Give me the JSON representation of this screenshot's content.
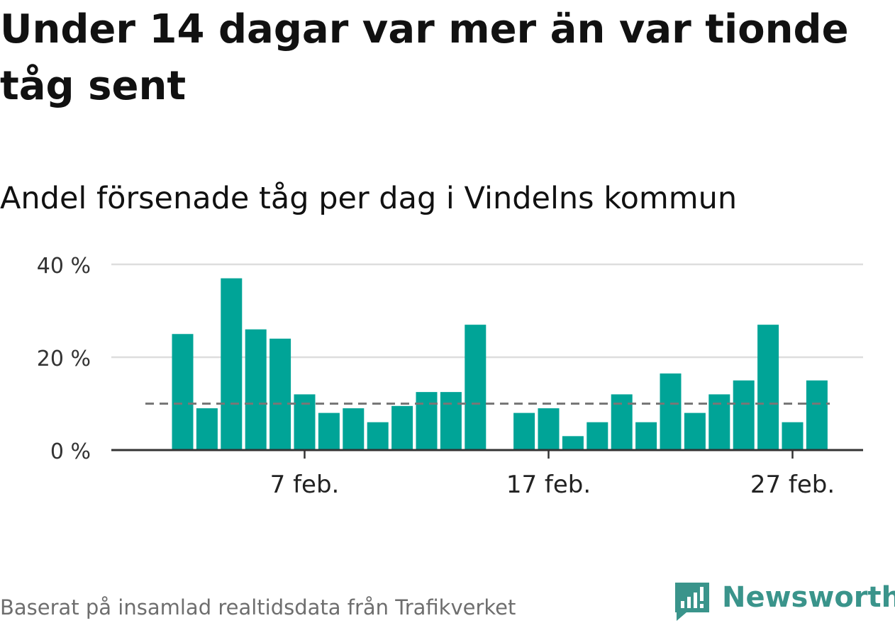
{
  "title": "Under 14 dagar var mer än var tionde tåg sent",
  "subtitle": "Andel försenade tåg per dag i Vindelns kommun",
  "footer": "Baserat på insamlad realtidsdata från Trafikverket",
  "brand": {
    "name": "Newsworthy",
    "icon": "newsworthy-logo-icon",
    "color": "#3a948b"
  },
  "colors": {
    "bar": "#00a497",
    "reference_line": "#777777",
    "grid": "#dddddd",
    "axis": "#333333"
  },
  "chart_data": {
    "type": "bar",
    "x_unit": "date",
    "x": [
      "2024-02-02",
      "2024-02-03",
      "2024-02-04",
      "2024-02-05",
      "2024-02-06",
      "2024-02-07",
      "2024-02-08",
      "2024-02-09",
      "2024-02-10",
      "2024-02-11",
      "2024-02-12",
      "2024-02-13",
      "2024-02-14",
      "2024-02-15",
      "2024-02-16",
      "2024-02-17",
      "2024-02-18",
      "2024-02-19",
      "2024-02-20",
      "2024-02-21",
      "2024-02-22",
      "2024-02-23",
      "2024-02-24",
      "2024-02-25",
      "2024-02-26",
      "2024-02-27",
      "2024-02-28"
    ],
    "values": [
      25,
      9,
      37,
      26,
      24,
      12,
      8,
      9,
      6,
      9.5,
      12.5,
      12.5,
      27,
      null,
      8,
      9,
      3,
      6,
      12,
      6,
      16.5,
      8,
      12,
      15,
      27,
      6,
      15
    ],
    "reference_line": 10,
    "yticks": [
      0,
      20,
      40
    ],
    "ytick_labels": [
      "0 %",
      "20 %",
      "40 %"
    ],
    "xticks": [
      "2024-02-07",
      "2024-02-17",
      "2024-02-27"
    ],
    "xtick_labels": [
      "7 feb.",
      "17 feb.",
      "27 feb."
    ],
    "ylim": [
      0,
      40
    ],
    "grid": true
  }
}
